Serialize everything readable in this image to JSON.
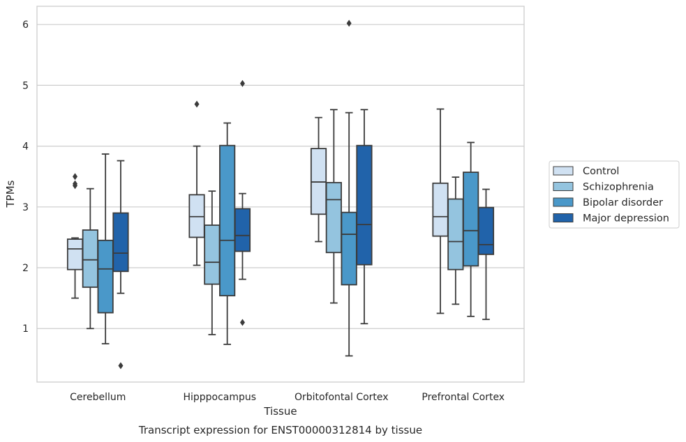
{
  "chart_data": {
    "type": "box",
    "title": "",
    "caption": "Transcript expression for ENST00000312814 by tissue",
    "xlabel": "Tissue",
    "ylabel": "TPMs",
    "ylim": [
      0.12,
      6.3
    ],
    "yticks": [
      1,
      2,
      3,
      4,
      5,
      6
    ],
    "grid": true,
    "legend_position": "right",
    "categories": [
      "Cerebellum",
      "Hipppocampus",
      "Orbitofontal Cortex",
      "Prefrontal Cortex"
    ],
    "series": [
      {
        "name": "Control",
        "color": "#d0e1f2",
        "boxes": [
          {
            "whislo": 1.5,
            "q1": 1.97,
            "med": 2.31,
            "q3": 2.47,
            "whishi": 2.49,
            "fliers": [
              3.35,
              3.38,
              3.5
            ]
          },
          {
            "whislo": 2.04,
            "q1": 2.5,
            "med": 2.84,
            "q3": 3.2,
            "whishi": 4.0,
            "fliers": [
              4.69
            ]
          },
          {
            "whislo": 2.43,
            "q1": 2.88,
            "med": 3.41,
            "q3": 3.96,
            "whishi": 4.47,
            "fliers": []
          },
          {
            "whislo": 1.25,
            "q1": 2.52,
            "med": 2.84,
            "q3": 3.39,
            "whishi": 4.61,
            "fliers": []
          }
        ]
      },
      {
        "name": "Schizophrenia",
        "color": "#94c4df",
        "boxes": [
          {
            "whislo": 1.0,
            "q1": 1.68,
            "med": 2.13,
            "q3": 2.62,
            "whishi": 3.3,
            "fliers": []
          },
          {
            "whislo": 0.9,
            "q1": 1.73,
            "med": 2.09,
            "q3": 2.7,
            "whishi": 3.26,
            "fliers": []
          },
          {
            "whislo": 1.42,
            "q1": 2.25,
            "med": 3.12,
            "q3": 3.4,
            "whishi": 4.6,
            "fliers": []
          },
          {
            "whislo": 1.4,
            "q1": 1.97,
            "med": 2.43,
            "q3": 3.13,
            "whishi": 3.49,
            "fliers": []
          }
        ]
      },
      {
        "name": "Bipolar disorder",
        "color": "#4a98c9",
        "boxes": [
          {
            "whislo": 0.75,
            "q1": 1.26,
            "med": 1.98,
            "q3": 2.45,
            "whishi": 3.87,
            "fliers": []
          },
          {
            "whislo": 0.74,
            "q1": 1.54,
            "med": 2.45,
            "q3": 4.01,
            "whishi": 4.38,
            "fliers": []
          },
          {
            "whislo": 0.55,
            "q1": 1.72,
            "med": 2.55,
            "q3": 2.91,
            "whishi": 4.55,
            "fliers": [
              6.02
            ]
          },
          {
            "whislo": 1.2,
            "q1": 2.03,
            "med": 2.61,
            "q3": 3.57,
            "whishi": 4.06,
            "fliers": []
          }
        ]
      },
      {
        "name": "Major depression",
        "color": "#2163aa",
        "boxes": [
          {
            "whislo": 1.58,
            "q1": 1.94,
            "med": 2.24,
            "q3": 2.9,
            "whishi": 3.76,
            "fliers": [
              0.39
            ]
          },
          {
            "whislo": 1.81,
            "q1": 2.27,
            "med": 2.53,
            "q3": 2.97,
            "whishi": 3.22,
            "fliers": [
              1.1,
              5.03
            ]
          },
          {
            "whislo": 1.08,
            "q1": 2.05,
            "med": 2.71,
            "q3": 4.01,
            "whishi": 4.6,
            "fliers": []
          },
          {
            "whislo": 1.15,
            "q1": 2.22,
            "med": 2.38,
            "q3": 2.99,
            "whishi": 3.29,
            "fliers": []
          }
        ]
      }
    ]
  }
}
